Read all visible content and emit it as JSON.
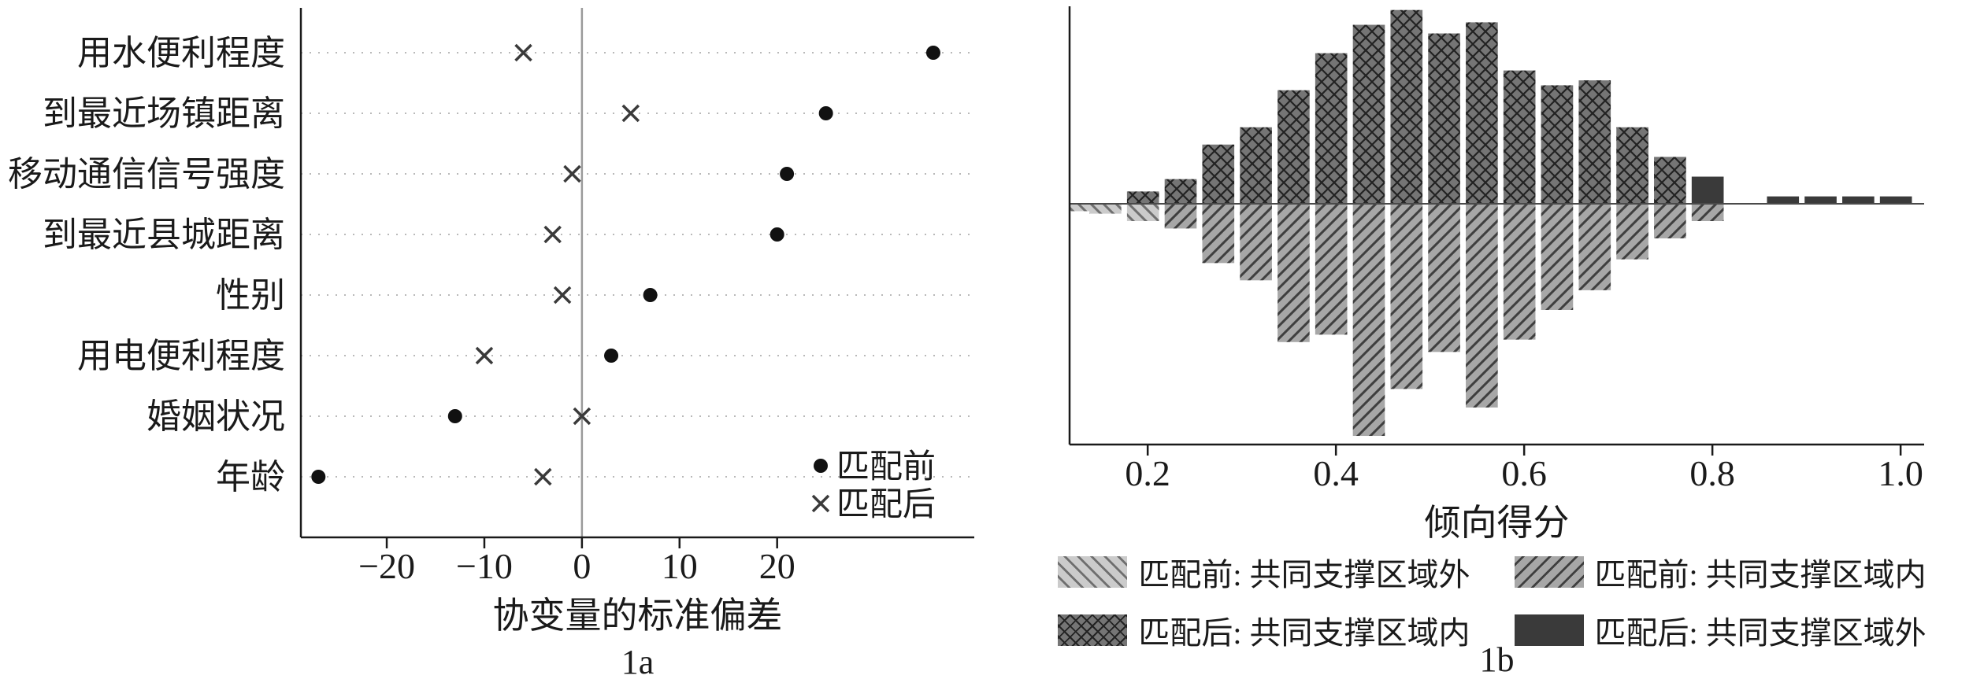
{
  "figure": {
    "background": "#ffffff",
    "panels": [
      {
        "caption": "1a"
      },
      {
        "caption": "1b"
      }
    ]
  },
  "colors": {
    "axis": "#1a1a1a",
    "grid_dotted": "#b9b9b9",
    "zero_line": "#9a9a9a",
    "marker_dot": "#111111",
    "marker_x": "#3a3a3a",
    "hist_light": "#cbcbcb",
    "hist_mid": "#a7a7a7",
    "hist_dark": "#757575",
    "hist_solid": "#3a3a3a"
  },
  "chart_data": [
    {
      "type": "scatter",
      "panel": "1a",
      "xlabel": "协变量的标准偏差",
      "categories": [
        "用水便利程度",
        "到最近场镇距离",
        "移动通信信号强度",
        "到最近县城距离",
        "性别",
        "用电便利程度",
        "婚姻状况",
        "年龄"
      ],
      "xticks": [
        -20,
        -10,
        0,
        10,
        20
      ],
      "xlim": [
        -28.8,
        40.2
      ],
      "grid": "dotted-horizontal",
      "zero_line": true,
      "legend_position": "inside-bottom-right",
      "series": [
        {
          "name": "匹配前",
          "marker": "dot",
          "values": [
            36,
            25,
            21,
            20,
            7,
            3,
            -13,
            -27
          ]
        },
        {
          "name": "匹配后",
          "marker": "x",
          "values": [
            -6,
            5,
            -1,
            -3,
            -2,
            -10,
            0,
            -4
          ]
        }
      ]
    },
    {
      "type": "bar",
      "panel": "1b",
      "xlabel": "倾向得分",
      "xticks": [
        0.2,
        0.4,
        0.6,
        0.8,
        1.0
      ],
      "xlim": [
        0.117,
        1.025
      ],
      "ylim": [
        -195,
        160
      ],
      "y_units": "frequency (unlabeled axis, arbitrary units)",
      "bar_width": 0.034,
      "baseline": 0,
      "series": [
        {
          "name": "匹配前: 共同支撑区域外",
          "direction": "down",
          "style": "light-backslash",
          "x": [
            0.125,
            0.155,
            0.195
          ],
          "values": [
            6,
            8,
            14
          ]
        },
        {
          "name": "匹配前: 共同支撑区域内",
          "direction": "down",
          "style": "gray-slash",
          "x": [
            0.235,
            0.275,
            0.315,
            0.355,
            0.395,
            0.435,
            0.475,
            0.515,
            0.555,
            0.595,
            0.635,
            0.675,
            0.715,
            0.755,
            0.795
          ],
          "values": [
            20,
            48,
            62,
            112,
            106,
            188,
            150,
            120,
            165,
            110,
            86,
            70,
            45,
            28,
            14
          ]
        },
        {
          "name": "匹配后: 共同支撑区域内",
          "direction": "up",
          "style": "dark-crosshatch",
          "x": [
            0.195,
            0.235,
            0.275,
            0.315,
            0.355,
            0.395,
            0.435,
            0.475,
            0.515,
            0.555,
            0.595,
            0.635,
            0.675,
            0.715,
            0.755
          ],
          "values": [
            10,
            20,
            48,
            62,
            92,
            122,
            145,
            157,
            138,
            147,
            108,
            96,
            100,
            62,
            38
          ]
        },
        {
          "name": "匹配后: 共同支撑区域外",
          "direction": "up",
          "style": "dark-solid",
          "x": [
            0.795,
            0.875,
            0.915,
            0.955,
            0.995
          ],
          "values": [
            22,
            6,
            6,
            6,
            6
          ]
        }
      ],
      "legend_rows": [
        [
          "匹配前: 共同支撑区域外",
          "匹配前: 共同支撑区域内"
        ],
        [
          "匹配后: 共同支撑区域内",
          "匹配后: 共同支撑区域外"
        ]
      ]
    }
  ]
}
